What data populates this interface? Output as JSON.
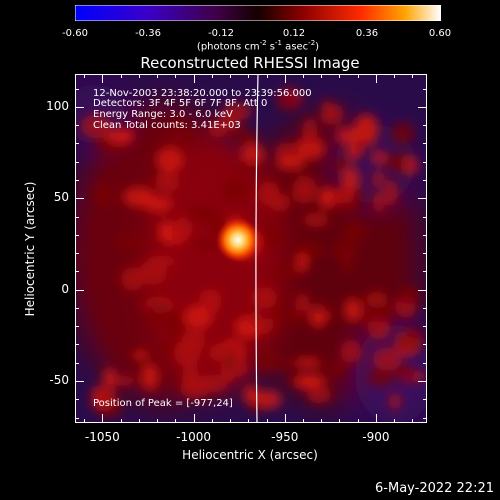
{
  "colorbar": {
    "ticks": [
      "-0.60",
      "-0.36",
      "-0.12",
      "0.12",
      "0.36",
      "0.60"
    ],
    "units_prefix": "(photons cm",
    "units_sup1": "-2",
    "units_mid": " s",
    "units_sup2": "-1",
    "units_mid2": " asec",
    "units_sup3": "-2",
    "units_suffix": ")"
  },
  "title": "Reconstructed RHESSI Image",
  "annotations": {
    "line1": "12-Nov-2003 23:38:20.000 to 23:39:56.000",
    "line2": "Detectors: 3F 4F 5F 6F 7F 8F, Att 0",
    "line3": "Energy Range: 3.0 - 6.0 keV",
    "line4": "Clean     Total counts: 3.41E+03",
    "peak": "Position of Peak = [-977,24]"
  },
  "chart_data": {
    "type": "heatmap",
    "title": "Reconstructed RHESSI Image",
    "xlabel": "Heliocentric X (arcsec)",
    "ylabel": "Heliocentric Y (arcsec)",
    "xlim": [
      -1065,
      -872
    ],
    "ylim": [
      -73,
      118
    ],
    "x_ticks": [
      "-1050",
      "-1000",
      "-950",
      "-900"
    ],
    "y_ticks": [
      "100",
      "50",
      "0",
      "-50"
    ],
    "colorbar_range": [
      -0.6,
      0.6
    ],
    "peak": [
      -977,
      24
    ]
  },
  "timestamp": "6-May-2022 22:21"
}
